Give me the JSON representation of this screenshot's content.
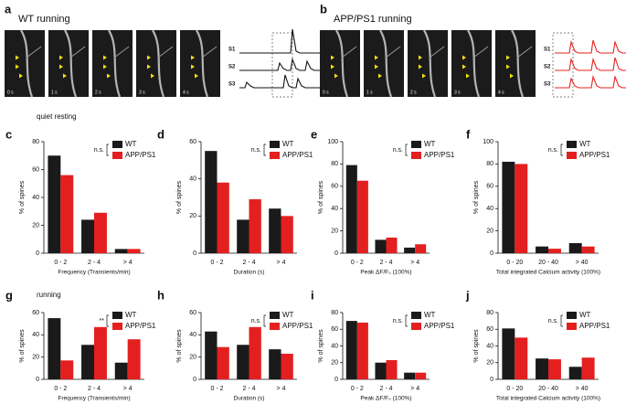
{
  "panels": [
    {
      "label": "a",
      "title": "WT running",
      "frames": [
        "0 s",
        "1 s",
        "2 s",
        "3 s",
        "4 s"
      ],
      "traces": [
        "S1",
        "S2",
        "S3"
      ],
      "trace_color": "#111111"
    },
    {
      "label": "b",
      "title": "APP/PS1 running",
      "frames": [
        "0 s",
        "1 s",
        "2 s",
        "3 s",
        "4 s"
      ],
      "traces": [
        "S1",
        "S2",
        "S3"
      ],
      "trace_color": "#e8231f"
    }
  ],
  "row_labels": [
    "quiet resting",
    "running"
  ],
  "chart_data": [
    {
      "type": "bar",
      "label": "c",
      "annotation": "n.s.",
      "ylabel": "% of spines",
      "xlabel": "Frequency (Transients/min)",
      "categories": [
        "0 - 2",
        "2 - 4",
        "> 4"
      ],
      "ylim": [
        0,
        80
      ],
      "yticks": [
        0,
        20,
        40,
        60,
        80
      ],
      "series": [
        {
          "name": "WT",
          "color": "#1a1a1a",
          "values": [
            70,
            24,
            3
          ]
        },
        {
          "name": "APP/PS1",
          "color": "#e41f1f",
          "values": [
            56,
            29,
            3
          ]
        }
      ]
    },
    {
      "type": "bar",
      "label": "d",
      "annotation": "n.s.",
      "ylabel": "% of spines",
      "xlabel": "Duration (s)",
      "categories": [
        "0 - 2",
        "2 - 4",
        "> 4"
      ],
      "ylim": [
        0,
        60
      ],
      "yticks": [
        0,
        20,
        40,
        60
      ],
      "series": [
        {
          "name": "WT",
          "color": "#1a1a1a",
          "values": [
            55,
            18,
            24
          ]
        },
        {
          "name": "APP/PS1",
          "color": "#e41f1f",
          "values": [
            38,
            29,
            20
          ]
        }
      ]
    },
    {
      "type": "bar",
      "label": "e",
      "annotation": "n.s.",
      "ylabel": "% of spines",
      "xlabel": "Peak ΔF/F₀ (100%)",
      "categories": [
        "0 - 2",
        "2 - 4",
        "> 4"
      ],
      "ylim": [
        0,
        100
      ],
      "yticks": [
        0,
        20,
        40,
        60,
        80,
        100
      ],
      "series": [
        {
          "name": "WT",
          "color": "#1a1a1a",
          "values": [
            79,
            12,
            5
          ]
        },
        {
          "name": "APP/PS1",
          "color": "#e41f1f",
          "values": [
            65,
            14,
            8
          ]
        }
      ]
    },
    {
      "type": "bar",
      "label": "f",
      "annotation": "n.s.",
      "ylabel": "% of spines",
      "xlabel": "Total integrated Calcium activity (100%)",
      "categories": [
        "0 - 20",
        "20 - 40",
        "> 40"
      ],
      "ylim": [
        0,
        100
      ],
      "yticks": [
        0,
        20,
        40,
        60,
        80,
        100
      ],
      "series": [
        {
          "name": "WT",
          "color": "#1a1a1a",
          "values": [
            82,
            6,
            9
          ]
        },
        {
          "name": "APP/PS1",
          "color": "#e41f1f",
          "values": [
            80,
            4,
            6
          ]
        }
      ]
    },
    {
      "type": "bar",
      "label": "g",
      "annotation": "**",
      "ylabel": "% of spines",
      "xlabel": "Frequency (Transients/min)",
      "categories": [
        "0 - 2",
        "2 - 4",
        "> 4"
      ],
      "ylim": [
        0,
        60
      ],
      "yticks": [
        0,
        20,
        40,
        60
      ],
      "series": [
        {
          "name": "WT",
          "color": "#1a1a1a",
          "values": [
            55,
            31,
            15
          ]
        },
        {
          "name": "APP/PS1",
          "color": "#e41f1f",
          "values": [
            17,
            47,
            36
          ]
        }
      ]
    },
    {
      "type": "bar",
      "label": "h",
      "annotation": "n.s.",
      "ylabel": "% of spines",
      "xlabel": "Duration (s)",
      "categories": [
        "0 - 2",
        "2 - 4",
        "> 4"
      ],
      "ylim": [
        0,
        60
      ],
      "yticks": [
        0,
        20,
        40,
        60
      ],
      "series": [
        {
          "name": "WT",
          "color": "#1a1a1a",
          "values": [
            43,
            31,
            27
          ]
        },
        {
          "name": "APP/PS1",
          "color": "#e41f1f",
          "values": [
            29,
            47,
            23
          ]
        }
      ]
    },
    {
      "type": "bar",
      "label": "i",
      "annotation": "n.s.",
      "ylabel": "% of spines",
      "xlabel": "Peak ΔF/F₀ (100%)",
      "categories": [
        "0 - 2",
        "2 - 4",
        "> 4"
      ],
      "ylim": [
        0,
        80
      ],
      "yticks": [
        0,
        20,
        40,
        60,
        80
      ],
      "series": [
        {
          "name": "WT",
          "color": "#1a1a1a",
          "values": [
            70,
            20,
            8
          ]
        },
        {
          "name": "APP/PS1",
          "color": "#e41f1f",
          "values": [
            68,
            23,
            8
          ]
        }
      ]
    },
    {
      "type": "bar",
      "label": "j",
      "annotation": "n.s.",
      "ylabel": "% of spines",
      "xlabel": "Total integrated Calcium activity (100%)",
      "categories": [
        "0 - 20",
        "20 - 40",
        "> 40"
      ],
      "ylim": [
        0,
        80
      ],
      "yticks": [
        0,
        20,
        40,
        60,
        80
      ],
      "series": [
        {
          "name": "WT",
          "color": "#1a1a1a",
          "values": [
            61,
            25,
            15
          ]
        },
        {
          "name": "APP/PS1",
          "color": "#e41f1f",
          "values": [
            50,
            24,
            26
          ]
        }
      ]
    }
  ]
}
